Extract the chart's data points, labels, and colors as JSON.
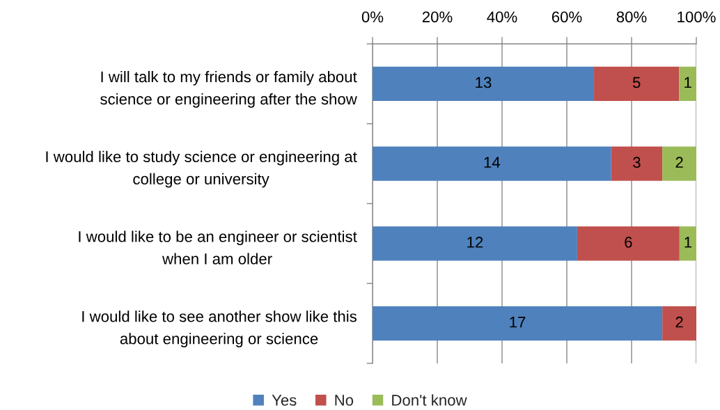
{
  "chart_data": {
    "type": "bar",
    "orientation": "horizontal",
    "stacked": true,
    "categories": [
      "I will talk to my friends or family about\nscience or engineering after the show",
      "I would like to study science or engineering at\ncollege or university",
      "I would like to be an engineer or scientist\nwhen I am older",
      "I would like to see another show like this\nabout engineering or science"
    ],
    "series": [
      {
        "name": "Yes",
        "color": "#4f81bd",
        "values": [
          68.4,
          73.7,
          63.2,
          89.5
        ]
      },
      {
        "name": "No",
        "color": "#c0504d",
        "values": [
          26.3,
          15.8,
          31.6,
          10.5
        ]
      },
      {
        "name": "Don't know",
        "color": "#9bbb59",
        "values": [
          5.3,
          10.5,
          5.2,
          null
        ]
      }
    ],
    "annotations": [
      "13",
      "5",
      "1",
      "14",
      "3",
      "2",
      "12",
      "6",
      "1",
      "17",
      "2"
    ],
    "xlim": [
      0,
      100
    ],
    "xticks": [
      {
        "value": 0,
        "label": "0%"
      },
      {
        "value": 20,
        "label": "20%"
      },
      {
        "value": 40,
        "label": "40%"
      },
      {
        "value": 60,
        "label": "60%"
      },
      {
        "value": 80,
        "label": "80%"
      },
      {
        "value": 100,
        "label": "100%"
      }
    ],
    "grid": "x",
    "legend": "bottom"
  }
}
